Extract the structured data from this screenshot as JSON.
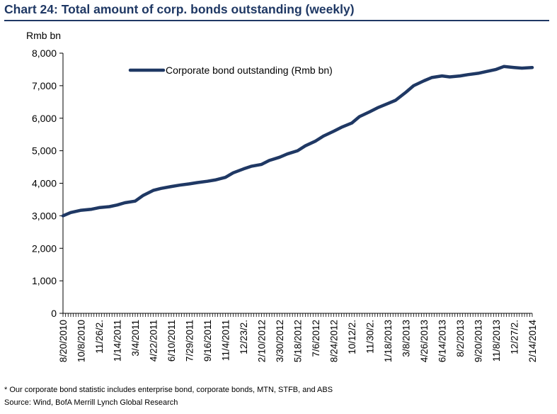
{
  "header": {
    "title": "Chart 24: Total amount of corp. bonds outstanding (weekly)"
  },
  "footer": {
    "footnote": "* Our corporate bond statistic includes enterprise bond, corporate bonds, MTN, STFB, and ABS",
    "source": "Source: Wind, BofA Merrill Lynch Global Research"
  },
  "colors": {
    "title": "#1f3864",
    "series": "#1f3864"
  },
  "chart_data": {
    "type": "line",
    "title": "Chart 24: Total amount of corp. bonds outstanding (weekly)",
    "ylabel": "Rmb bn",
    "ylim": [
      0,
      8000
    ],
    "yticks": [
      0,
      1000,
      2000,
      3000,
      4000,
      5000,
      6000,
      7000,
      8000
    ],
    "ytick_labels": [
      "0",
      "1,000",
      "2,000",
      "3,000",
      "4,000",
      "5,000",
      "6,000",
      "7,000",
      "8,000"
    ],
    "xlim": [
      "8/20/2010",
      "2/14/2014"
    ],
    "xtick_labels": [
      "8/20/2010",
      "10/8/2010",
      "11/26/2.",
      "1/14/2011",
      "3/4/2011",
      "4/22/2011",
      "6/10/2011",
      "7/29/2011",
      "9/16/2011",
      "11/4/2011",
      "12/23/2.",
      "2/10/2012",
      "3/30/2012",
      "5/18/2012",
      "7/6/2012",
      "8/24/2012",
      "10/12/2.",
      "11/30/2.",
      "1/18/2013",
      "3/8/2013",
      "4/26/2013",
      "6/14/2013",
      "8/2/2013",
      "9/20/2013",
      "11/8/2013",
      "12/27/2.",
      "2/14/2014"
    ],
    "legend": {
      "position": "top-left",
      "label": "Corporate bond outstanding (Rmb bn)"
    },
    "grid": false,
    "series": [
      {
        "name": "Corporate bond outstanding (Rmb bn)",
        "x": [
          "8/20/2010",
          "9/10/2010",
          "10/8/2010",
          "11/5/2010",
          "11/26/2010",
          "12/24/2010",
          "1/14/2011",
          "2/4/2011",
          "3/4/2011",
          "3/25/2011",
          "4/22/2011",
          "5/13/2011",
          "6/10/2011",
          "7/1/2011",
          "7/29/2011",
          "8/19/2011",
          "9/16/2011",
          "10/7/2011",
          "11/4/2011",
          "11/25/2011",
          "12/23/2011",
          "1/13/2012",
          "2/10/2012",
          "3/2/2012",
          "3/30/2012",
          "4/20/2012",
          "5/18/2012",
          "6/8/2012",
          "7/6/2012",
          "7/27/2012",
          "8/24/2012",
          "9/14/2012",
          "10/12/2012",
          "11/2/2012",
          "11/30/2012",
          "12/21/2012",
          "1/18/2013",
          "2/8/2013",
          "3/8/2013",
          "3/29/2013",
          "4/26/2013",
          "5/17/2013",
          "6/14/2013",
          "7/5/2013",
          "8/2/2013",
          "8/23/2013",
          "9/20/2013",
          "10/11/2013",
          "11/8/2013",
          "11/29/2013",
          "12/27/2013",
          "1/17/2014",
          "2/14/2014"
        ],
        "values": [
          3000,
          3100,
          3170,
          3200,
          3250,
          3280,
          3330,
          3400,
          3450,
          3620,
          3780,
          3840,
          3900,
          3940,
          3980,
          4020,
          4060,
          4100,
          4180,
          4320,
          4440,
          4520,
          4580,
          4700,
          4800,
          4900,
          5000,
          5150,
          5300,
          5450,
          5600,
          5720,
          5850,
          6050,
          6200,
          6320,
          6450,
          6550,
          6800,
          7000,
          7150,
          7250,
          7300,
          7270,
          7300,
          7340,
          7380,
          7430,
          7500,
          7590,
          7560,
          7540,
          7560
        ]
      }
    ]
  }
}
